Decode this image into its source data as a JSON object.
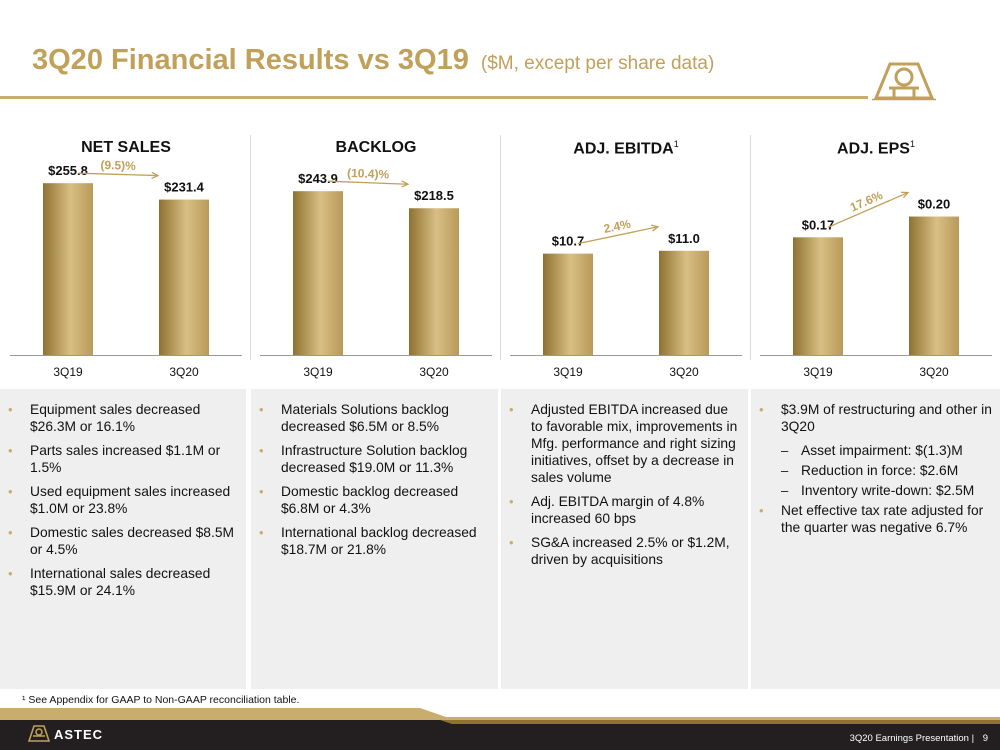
{
  "header": {
    "title": "3Q20 Financial Results vs 3Q19",
    "subtitle": "($M, except per share data)"
  },
  "chart_data": [
    {
      "type": "bar",
      "title": "NET SALES",
      "categories": [
        "3Q19",
        "3Q20"
      ],
      "values": [
        255.8,
        231.4
      ],
      "labels": [
        "$255.8",
        "$231.4"
      ],
      "change": "(9.5)%",
      "ylim": [
        0,
        268
      ]
    },
    {
      "type": "bar",
      "title": "BACKLOG",
      "categories": [
        "3Q19",
        "3Q20"
      ],
      "values": [
        243.9,
        218.5
      ],
      "labels": [
        "$243.9",
        "$218.5"
      ],
      "change": "(10.4)%",
      "ylim": [
        0,
        268
      ]
    },
    {
      "type": "bar",
      "title": "ADJ. EBITDA",
      "title_sup": "1",
      "categories": [
        "3Q19",
        "3Q20"
      ],
      "values": [
        10.7,
        11.0
      ],
      "labels": [
        "$10.7",
        "$11.0"
      ],
      "change": "2.4%",
      "ylim": [
        0,
        19
      ]
    },
    {
      "type": "bar",
      "title": "ADJ. EPS",
      "title_sup": "1",
      "categories": [
        "3Q19",
        "3Q20"
      ],
      "values": [
        0.17,
        0.2
      ],
      "labels": [
        "$0.17",
        "$0.20"
      ],
      "change": "17.6%",
      "ylim": [
        0,
        0.26
      ]
    }
  ],
  "bullets": {
    "net_sales": [
      "Equipment sales decreased $26.3M or 16.1%",
      "Parts sales increased $1.1M or 1.5%",
      "Used equipment sales increased $1.0M or 23.8%",
      "Domestic sales decreased $8.5M or 4.5%",
      "International sales decreased $15.9M or 24.1%"
    ],
    "backlog": [
      "Materials Solutions backlog decreased $6.5M or 8.5%",
      "Infrastructure Solution backlog decreased $19.0M or 11.3%",
      "Domestic backlog decreased $6.8M or 4.3%",
      "International backlog decreased $18.7M or 21.8%"
    ],
    "ebitda": [
      "Adjusted EBITDA increased due to favorable mix, improvements in Mfg. performance and right sizing initiatives, offset by a decrease in sales volume",
      "Adj. EBITDA margin of 4.8% increased 60 bps",
      "SG&A increased 2.5% or $1.2M, driven by acquisitions"
    ],
    "eps": {
      "main": "$3.9M of restructuring and other in 3Q20",
      "subs": [
        "Asset impairment: $(1.3)M",
        "Reduction in force: $2.6M",
        "Inventory write-down: $2.5M"
      ],
      "last": "Net effective tax rate adjusted for the quarter was negative 6.7%"
    }
  },
  "footnote": "¹ See Appendix for GAAP to Non-GAAP reconciliation table.",
  "footer": {
    "brand": "ASTEC",
    "presentation": "3Q20 Earnings Presentation |",
    "page": "9"
  },
  "colors": {
    "gold": "#c1a05a",
    "bar_dark": "#8f7232",
    "bar_light": "#d9bf84",
    "footer_bg": "#231f20"
  }
}
